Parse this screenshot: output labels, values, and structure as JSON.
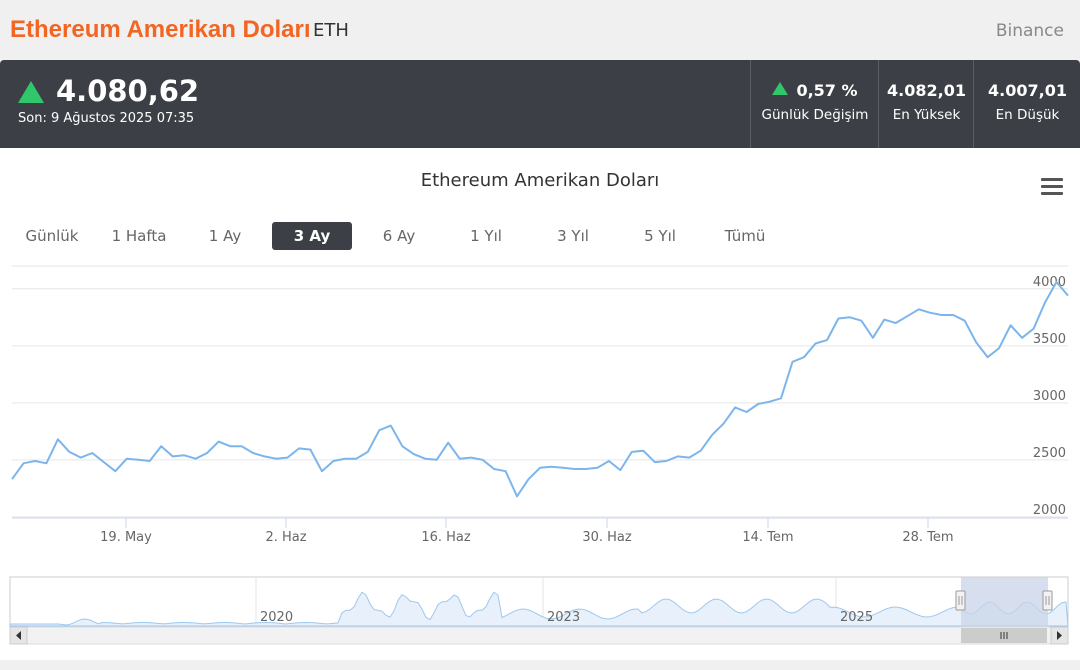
{
  "header": {
    "title": "Ethereum Amerikan Doları",
    "symbol": "ETH",
    "exchange": "Binance"
  },
  "quote": {
    "price": "4.080,62",
    "last_update": "Son: 9 Ağustos 2025 07:35",
    "change": "0,57 %",
    "change_label": "Günlük Değişim",
    "high": "4.082,01",
    "high_label": "En Yüksek",
    "low": "4.007,01",
    "low_label": "En Düşük",
    "up_color": "#30c66a"
  },
  "ranges": [
    "Günlük",
    "1 Hafta",
    "1 Ay",
    "3 Ay",
    "6 Ay",
    "1 Yıl",
    "3 Yıl",
    "5 Yıl",
    "Tümü"
  ],
  "active_range": "3 Ay",
  "chart_data": {
    "type": "line",
    "title": "Ethereum Amerikan Doları",
    "line_color": "#7cb5ec",
    "x_ticks": [
      "19. May",
      "2. Haz",
      "16. Haz",
      "30. Haz",
      "14. Tem",
      "28. Tem"
    ],
    "y_ticks": [
      2000,
      2500,
      3000,
      3500,
      4000
    ],
    "ylim": [
      1990,
      4200
    ],
    "grid": true,
    "series": [
      {
        "values": [
          2330,
          2470,
          2490,
          2470,
          2680,
          2570,
          2520,
          2560,
          2480,
          2400,
          2510,
          2500,
          2490,
          2620,
          2530,
          2540,
          2510,
          2560,
          2660,
          2620,
          2620,
          2560,
          2530,
          2510,
          2520,
          2600,
          2590,
          2400,
          2490,
          2510,
          2510,
          2570,
          2760,
          2800,
          2620,
          2550,
          2510,
          2500,
          2650,
          2510,
          2520,
          2500,
          2420,
          2400,
          2180,
          2330,
          2430,
          2440,
          2430,
          2420,
          2420,
          2430,
          2490,
          2410,
          2570,
          2580,
          2480,
          2490,
          2530,
          2520,
          2580,
          2720,
          2820,
          2960,
          2920,
          2990,
          3010,
          3040,
          3360,
          3400,
          3520,
          3550,
          3740,
          3750,
          3720,
          3570,
          3730,
          3700,
          3760,
          3820,
          3790,
          3770,
          3770,
          3720,
          3530,
          3400,
          3480,
          3680,
          3570,
          3650,
          3880,
          4060,
          3940
        ]
      }
    ]
  },
  "navigator": {
    "year_labels": [
      "2020",
      "2023",
      "2025"
    ],
    "handle_color": "#c9d4e8"
  }
}
